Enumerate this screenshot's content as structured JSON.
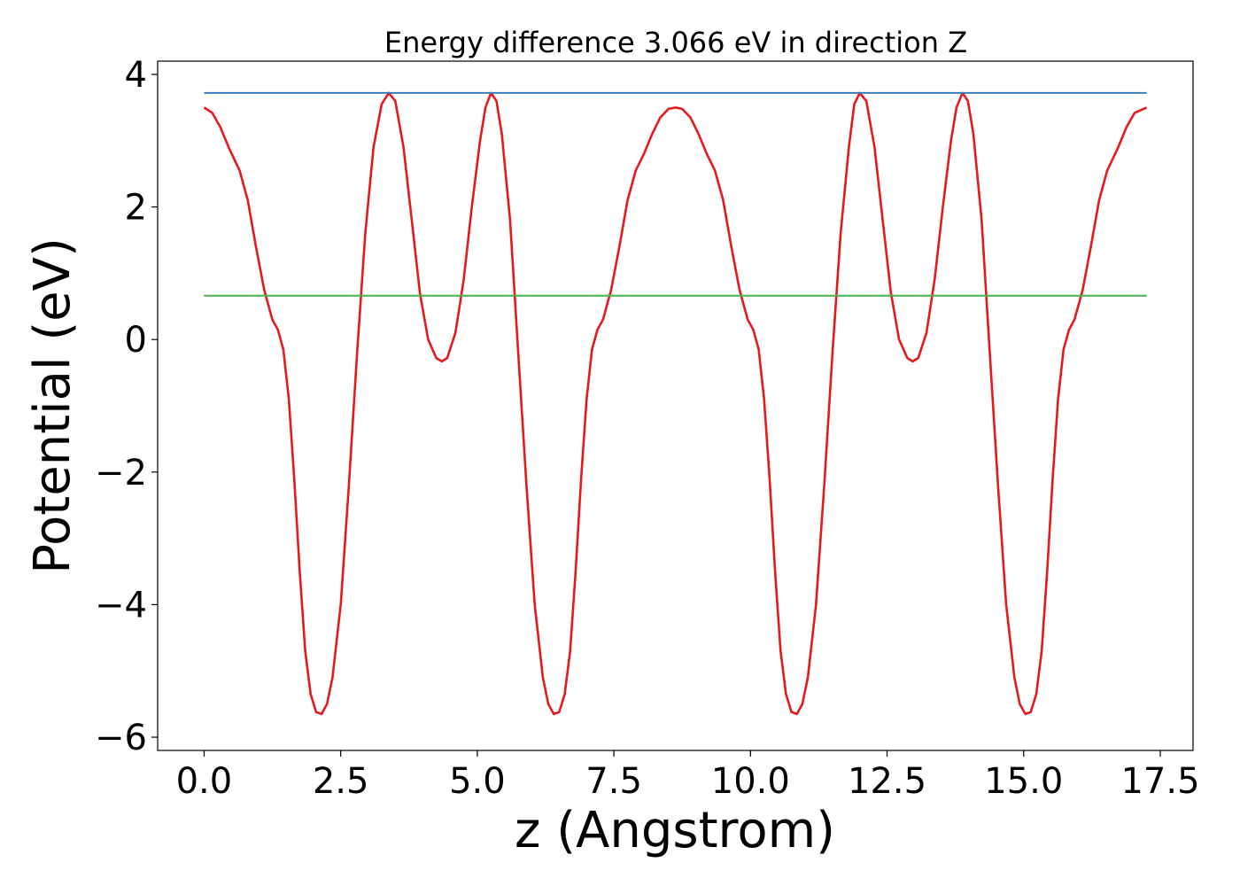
{
  "chart_data": {
    "type": "line",
    "title": "Energy difference 3.066 eV in direction Z",
    "xlabel": "z (Angstrom)",
    "ylabel": "Potential (eV)",
    "xlim": [
      -0.85,
      18.1
    ],
    "ylim": [
      -6.2,
      4.2
    ],
    "x_ticks": [
      0.0,
      2.5,
      5.0,
      7.5,
      10.0,
      12.5,
      15.0,
      17.5
    ],
    "x_tick_labels": [
      "0.0",
      "2.5",
      "5.0",
      "7.5",
      "10.0",
      "12.5",
      "15.0",
      "17.5"
    ],
    "y_ticks": [
      -6,
      -4,
      -2,
      0,
      2,
      4
    ],
    "y_tick_labels": [
      "−6",
      "−4",
      "−2",
      "0",
      "2",
      "4"
    ],
    "grid": false,
    "series": [
      {
        "color": "#e41a1c",
        "style": "solid",
        "points": [
          [
            0.0,
            3.5
          ],
          [
            0.15,
            3.42
          ],
          [
            0.3,
            3.2
          ],
          [
            0.45,
            2.9
          ],
          [
            0.65,
            2.55
          ],
          [
            0.8,
            2.1
          ],
          [
            0.95,
            1.4
          ],
          [
            1.1,
            0.75
          ],
          [
            1.25,
            0.3
          ],
          [
            1.35,
            0.15
          ],
          [
            1.45,
            -0.15
          ],
          [
            1.55,
            -0.9
          ],
          [
            1.65,
            -2.1
          ],
          [
            1.75,
            -3.5
          ],
          [
            1.85,
            -4.7
          ],
          [
            1.95,
            -5.35
          ],
          [
            2.05,
            -5.62
          ],
          [
            2.15,
            -5.65
          ],
          [
            2.25,
            -5.5
          ],
          [
            2.35,
            -5.1
          ],
          [
            2.5,
            -4.0
          ],
          [
            2.65,
            -2.2
          ],
          [
            2.8,
            -0.2
          ],
          [
            2.95,
            1.6
          ],
          [
            3.1,
            2.9
          ],
          [
            3.25,
            3.55
          ],
          [
            3.38,
            3.72
          ],
          [
            3.5,
            3.6
          ],
          [
            3.65,
            2.9
          ],
          [
            3.8,
            1.8
          ],
          [
            3.95,
            0.7
          ],
          [
            4.1,
            0.0
          ],
          [
            4.25,
            -0.28
          ],
          [
            4.35,
            -0.33
          ],
          [
            4.45,
            -0.28
          ],
          [
            4.6,
            0.1
          ],
          [
            4.75,
            0.9
          ],
          [
            4.9,
            2.0
          ],
          [
            5.05,
            3.0
          ],
          [
            5.15,
            3.5
          ],
          [
            5.25,
            3.72
          ],
          [
            5.35,
            3.6
          ],
          [
            5.45,
            3.1
          ],
          [
            5.6,
            1.8
          ],
          [
            5.75,
            -0.2
          ],
          [
            5.9,
            -2.2
          ],
          [
            6.05,
            -4.0
          ],
          [
            6.2,
            -5.1
          ],
          [
            6.3,
            -5.5
          ],
          [
            6.4,
            -5.65
          ],
          [
            6.5,
            -5.62
          ],
          [
            6.6,
            -5.35
          ],
          [
            6.7,
            -4.7
          ],
          [
            6.8,
            -3.5
          ],
          [
            6.9,
            -2.1
          ],
          [
            7.0,
            -0.9
          ],
          [
            7.1,
            -0.15
          ],
          [
            7.2,
            0.15
          ],
          [
            7.3,
            0.3
          ],
          [
            7.45,
            0.75
          ],
          [
            7.6,
            1.4
          ],
          [
            7.75,
            2.1
          ],
          [
            7.9,
            2.55
          ],
          [
            8.05,
            2.8
          ],
          [
            8.2,
            3.1
          ],
          [
            8.35,
            3.35
          ],
          [
            8.5,
            3.48
          ],
          [
            8.63,
            3.5
          ],
          [
            8.75,
            3.48
          ],
          [
            8.9,
            3.35
          ],
          [
            9.05,
            3.1
          ],
          [
            9.2,
            2.8
          ],
          [
            9.35,
            2.55
          ],
          [
            9.5,
            2.1
          ],
          [
            9.65,
            1.4
          ],
          [
            9.8,
            0.75
          ],
          [
            9.95,
            0.3
          ],
          [
            10.05,
            0.15
          ],
          [
            10.15,
            -0.15
          ],
          [
            10.25,
            -0.9
          ],
          [
            10.35,
            -2.1
          ],
          [
            10.45,
            -3.5
          ],
          [
            10.55,
            -4.7
          ],
          [
            10.65,
            -5.35
          ],
          [
            10.75,
            -5.62
          ],
          [
            10.85,
            -5.65
          ],
          [
            10.95,
            -5.5
          ],
          [
            11.05,
            -5.1
          ],
          [
            11.2,
            -4.0
          ],
          [
            11.35,
            -2.2
          ],
          [
            11.5,
            -0.2
          ],
          [
            11.65,
            1.6
          ],
          [
            11.8,
            2.9
          ],
          [
            11.9,
            3.55
          ],
          [
            12.0,
            3.72
          ],
          [
            12.12,
            3.6
          ],
          [
            12.27,
            2.9
          ],
          [
            12.42,
            1.8
          ],
          [
            12.57,
            0.7
          ],
          [
            12.72,
            0.0
          ],
          [
            12.87,
            -0.28
          ],
          [
            12.97,
            -0.33
          ],
          [
            13.07,
            -0.28
          ],
          [
            13.22,
            0.1
          ],
          [
            13.37,
            0.9
          ],
          [
            13.52,
            2.0
          ],
          [
            13.67,
            3.0
          ],
          [
            13.77,
            3.5
          ],
          [
            13.88,
            3.72
          ],
          [
            13.98,
            3.6
          ],
          [
            14.08,
            3.1
          ],
          [
            14.23,
            1.8
          ],
          [
            14.38,
            -0.2
          ],
          [
            14.53,
            -2.2
          ],
          [
            14.68,
            -4.0
          ],
          [
            14.83,
            -5.1
          ],
          [
            14.93,
            -5.5
          ],
          [
            15.03,
            -5.65
          ],
          [
            15.13,
            -5.62
          ],
          [
            15.23,
            -5.35
          ],
          [
            15.33,
            -4.7
          ],
          [
            15.43,
            -3.5
          ],
          [
            15.53,
            -2.1
          ],
          [
            15.63,
            -0.9
          ],
          [
            15.73,
            -0.15
          ],
          [
            15.83,
            0.15
          ],
          [
            15.93,
            0.3
          ],
          [
            16.08,
            0.75
          ],
          [
            16.23,
            1.4
          ],
          [
            16.38,
            2.1
          ],
          [
            16.53,
            2.55
          ],
          [
            16.73,
            2.9
          ],
          [
            16.88,
            3.2
          ],
          [
            17.03,
            3.42
          ],
          [
            17.25,
            3.5
          ]
        ]
      },
      {
        "color": "#377eb8",
        "style": "solid",
        "points": [
          [
            0.0,
            3.72
          ],
          [
            17.25,
            3.72
          ]
        ]
      },
      {
        "color": "#4daf4a",
        "style": "solid",
        "points": [
          [
            0.0,
            0.66
          ],
          [
            17.25,
            0.66
          ]
        ]
      }
    ]
  }
}
